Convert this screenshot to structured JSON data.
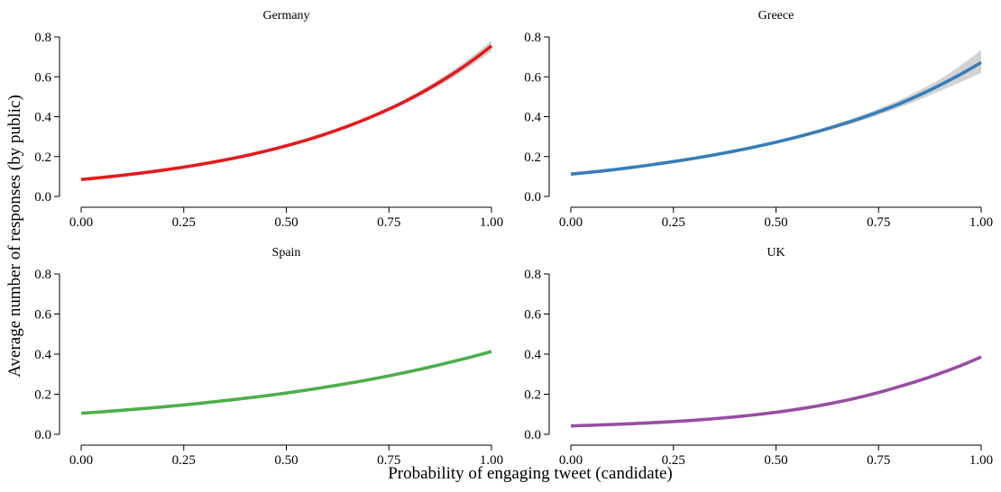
{
  "figure": {
    "xlabel": "Probability of engaging tweet (candidate)",
    "ylabel": "Average number of responses (by public)"
  },
  "chart_data": [
    {
      "type": "line",
      "title": "Germany",
      "color": "#e41a1c",
      "xlim": [
        0,
        1
      ],
      "ylim": [
        0,
        0.8
      ],
      "xticks": [
        "0.00",
        "0.25",
        "0.50",
        "0.75",
        "1.00"
      ],
      "yticks": [
        "0.0",
        "0.2",
        "0.4",
        "0.6",
        "0.8"
      ],
      "x": [
        0,
        0.1,
        0.2,
        0.3,
        0.4,
        0.5,
        0.6,
        0.7,
        0.8,
        0.9,
        1.0
      ],
      "y": [
        0.085,
        0.106,
        0.132,
        0.164,
        0.204,
        0.254,
        0.316,
        0.393,
        0.488,
        0.607,
        0.755
      ],
      "ci_lower": [
        0.082,
        0.103,
        0.129,
        0.161,
        0.201,
        0.251,
        0.312,
        0.386,
        0.476,
        0.589,
        0.728
      ],
      "ci_upper": [
        0.088,
        0.109,
        0.135,
        0.167,
        0.207,
        0.257,
        0.32,
        0.4,
        0.5,
        0.625,
        0.782
      ]
    },
    {
      "type": "line",
      "title": "Greece",
      "color": "#377eb8",
      "xlim": [
        0,
        1
      ],
      "ylim": [
        0,
        0.8
      ],
      "xticks": [
        "0.00",
        "0.25",
        "0.50",
        "0.75",
        "1.00"
      ],
      "yticks": [
        "0.0",
        "0.2",
        "0.4",
        "0.6",
        "0.8"
      ],
      "x": [
        0,
        0.1,
        0.2,
        0.3,
        0.4,
        0.5,
        0.6,
        0.7,
        0.8,
        0.9,
        1.0
      ],
      "y": [
        0.112,
        0.133,
        0.16,
        0.191,
        0.228,
        0.272,
        0.325,
        0.388,
        0.464,
        0.559,
        0.672
      ],
      "ci_lower": [
        0.108,
        0.129,
        0.156,
        0.187,
        0.223,
        0.266,
        0.316,
        0.375,
        0.445,
        0.53,
        0.62
      ],
      "ci_upper": [
        0.116,
        0.137,
        0.164,
        0.195,
        0.233,
        0.278,
        0.334,
        0.401,
        0.483,
        0.588,
        0.735
      ]
    },
    {
      "type": "line",
      "title": "Spain",
      "color": "#4daf4a",
      "xlim": [
        0,
        1
      ],
      "ylim": [
        0,
        0.8
      ],
      "xticks": [
        "0.00",
        "0.25",
        "0.50",
        "0.75",
        "1.00"
      ],
      "yticks": [
        "0.0",
        "0.2",
        "0.4",
        "0.6",
        "0.8"
      ],
      "x": [
        0,
        0.1,
        0.2,
        0.3,
        0.4,
        0.5,
        0.6,
        0.7,
        0.8,
        0.9,
        1.0
      ],
      "y": [
        0.105,
        0.12,
        0.137,
        0.157,
        0.18,
        0.206,
        0.237,
        0.272,
        0.313,
        0.36,
        0.413
      ],
      "ci_lower": [
        0.103,
        0.118,
        0.135,
        0.155,
        0.178,
        0.204,
        0.234,
        0.268,
        0.308,
        0.354,
        0.405
      ],
      "ci_upper": [
        0.107,
        0.122,
        0.139,
        0.159,
        0.182,
        0.208,
        0.24,
        0.276,
        0.318,
        0.366,
        0.421
      ]
    },
    {
      "type": "line",
      "title": "UK",
      "color": "#984ea3",
      "xlim": [
        0,
        1
      ],
      "ylim": [
        0,
        0.8
      ],
      "xticks": [
        "0.00",
        "0.25",
        "0.50",
        "0.75",
        "1.00"
      ],
      "yticks": [
        "0.0",
        "0.2",
        "0.4",
        "0.6",
        "0.8"
      ],
      "x": [
        0,
        0.1,
        0.2,
        0.3,
        0.4,
        0.5,
        0.6,
        0.7,
        0.8,
        0.9,
        1.0
      ],
      "y": [
        0.042,
        0.049,
        0.058,
        0.07,
        0.087,
        0.11,
        0.141,
        0.183,
        0.238,
        0.304,
        0.386
      ],
      "ci_lower": [
        0.04,
        0.047,
        0.056,
        0.068,
        0.085,
        0.108,
        0.139,
        0.18,
        0.234,
        0.299,
        0.379
      ],
      "ci_upper": [
        0.044,
        0.051,
        0.06,
        0.072,
        0.089,
        0.112,
        0.143,
        0.186,
        0.242,
        0.309,
        0.393
      ]
    }
  ]
}
